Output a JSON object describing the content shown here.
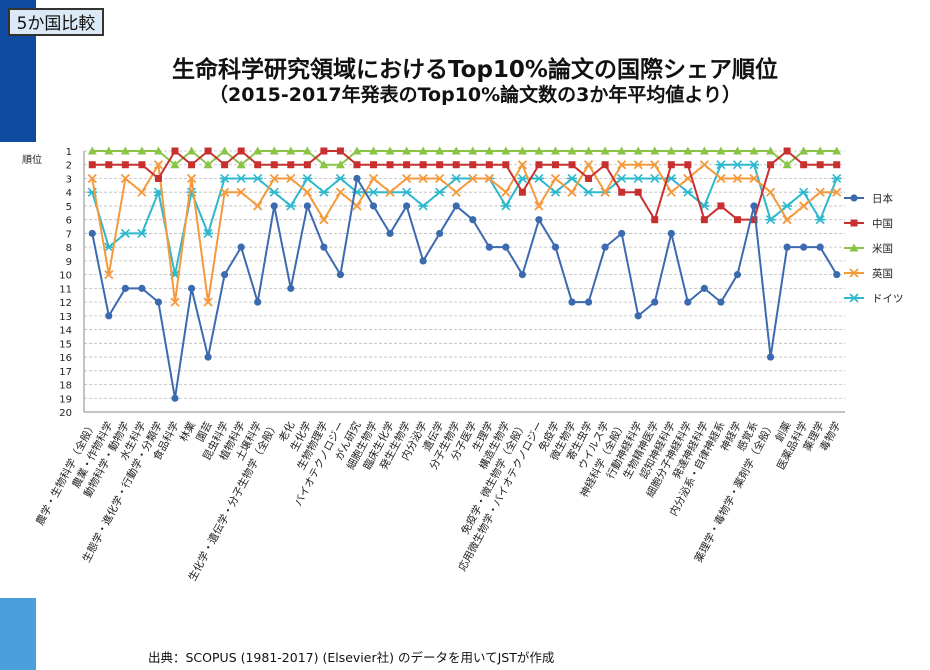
{
  "header": {
    "badge": "5か国比較",
    "title": "生命科学研究領域におけるTop10%論文の国際シェア順位",
    "subtitle": "（2015-2017年発表のTop10%論文数の3か年平均値より）"
  },
  "footer": {
    "source": "出典：SCOPUS (1981-2017) (Elsevier社) のデータを用いてJSTが作成"
  },
  "colors": {
    "japan": "#3c6ab0",
    "china": "#c8302f",
    "usa": "#8ac446",
    "uk": "#f59a3c",
    "germany": "#2fb8cc",
    "grid": "#bcbcbc"
  },
  "chart_data": {
    "type": "line",
    "ylabel": "順位",
    "ylim": [
      1,
      20
    ],
    "y_reversed": true,
    "legend_position": "right",
    "grid": true,
    "yticks": [
      1,
      2,
      3,
      4,
      5,
      6,
      7,
      8,
      9,
      10,
      11,
      12,
      13,
      14,
      15,
      16,
      17,
      18,
      19,
      20
    ],
    "categories": [
      "農学・生物科学（全般）",
      "農業・作物科学",
      "動物科学・動物学",
      "水生科学",
      "生態学・進化学・行動学・分類学",
      "食品科学",
      "林業",
      "園芸",
      "昆虫科学",
      "植物科学",
      "土壌科学",
      "生化学・遺伝学・分子生物学（全般）",
      "老化",
      "生化学",
      "生物物理学",
      "バイオテクノロジー",
      "がん研究",
      "細胞生物学",
      "臨床生化学",
      "発生生物学",
      "内分泌学",
      "遺伝学",
      "分子生物学",
      "分子医学",
      "生理学",
      "構造生物学",
      "免疫学・微生物学（全般）",
      "応用微生物学・バイオテクノロジー",
      "免疫学",
      "微生物学",
      "寄生虫学",
      "ウイルス学",
      "神経科学（全般）",
      "行動神経科学",
      "生物精神医学",
      "認知神経科学",
      "細胞分子神経科学",
      "発達神経科学",
      "内分泌系・自律神経系",
      "神経学",
      "感覚系",
      "薬理学・毒物学・薬剤学（全般）",
      "創薬",
      "医薬品科学",
      "薬理学",
      "毒物学"
    ],
    "series": [
      {
        "name": "日本",
        "values": [
          7,
          13,
          11,
          11,
          12,
          19,
          11,
          16,
          10,
          8,
          12,
          5,
          11,
          5,
          8,
          10,
          3,
          5,
          7,
          5,
          9,
          7,
          5,
          6,
          8,
          8,
          10,
          6,
          8,
          12,
          12,
          8,
          7,
          13,
          12,
          7,
          12,
          11,
          12,
          10,
          5,
          16,
          8,
          8,
          8,
          10
        ]
      },
      {
        "name": "中国",
        "values": [
          2,
          2,
          2,
          2,
          3,
          1,
          2,
          1,
          2,
          1,
          2,
          2,
          2,
          2,
          1,
          1,
          2,
          2,
          2,
          2,
          2,
          2,
          2,
          2,
          2,
          2,
          4,
          2,
          2,
          2,
          3,
          2,
          4,
          4,
          6,
          2,
          2,
          6,
          5,
          6,
          6,
          2,
          1,
          2,
          2,
          2
        ]
      },
      {
        "name": "米国",
        "values": [
          1,
          1,
          1,
          1,
          1,
          2,
          1,
          2,
          1,
          2,
          1,
          1,
          1,
          1,
          2,
          2,
          1,
          1,
          1,
          1,
          1,
          1,
          1,
          1,
          1,
          1,
          1,
          1,
          1,
          1,
          1,
          1,
          1,
          1,
          1,
          1,
          1,
          1,
          1,
          1,
          1,
          1,
          2,
          1,
          1,
          1
        ]
      },
      {
        "name": "英国",
        "values": [
          3,
          10,
          3,
          4,
          2,
          12,
          3,
          12,
          4,
          4,
          5,
          3,
          3,
          4,
          6,
          4,
          5,
          3,
          4,
          3,
          3,
          3,
          4,
          3,
          3,
          4,
          2,
          5,
          3,
          4,
          2,
          4,
          2,
          2,
          2,
          4,
          3,
          2,
          3,
          3,
          3,
          4,
          6,
          5,
          4,
          4
        ]
      },
      {
        "name": "ドイツ",
        "values": [
          4,
          8,
          7,
          7,
          4,
          10,
          4,
          7,
          3,
          3,
          3,
          4,
          5,
          3,
          4,
          3,
          4,
          4,
          4,
          4,
          5,
          4,
          3,
          3,
          3,
          5,
          3,
          3,
          4,
          3,
          4,
          4,
          3,
          3,
          3,
          3,
          4,
          5,
          2,
          2,
          2,
          6,
          5,
          4,
          6,
          3
        ]
      }
    ]
  }
}
